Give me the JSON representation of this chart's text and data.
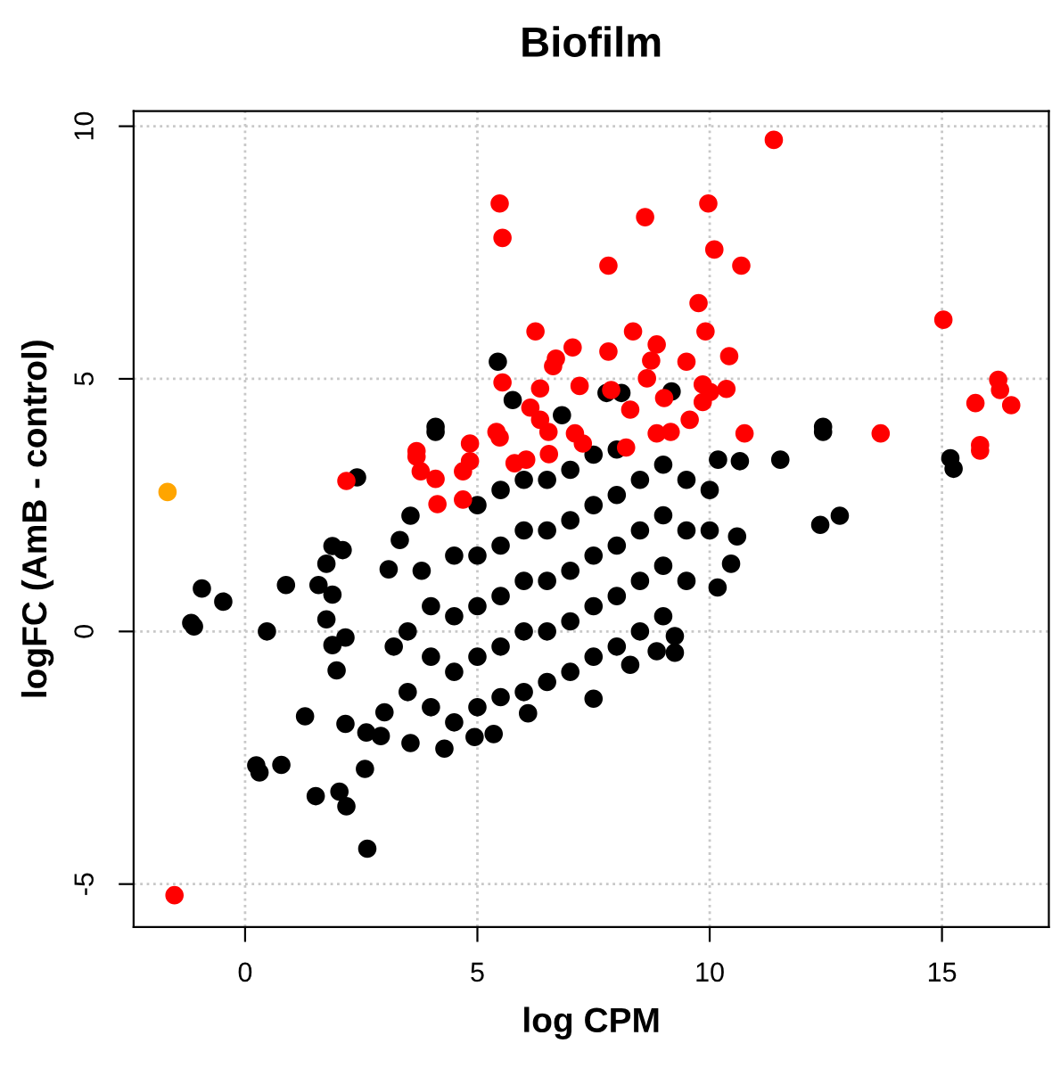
{
  "chart_data": {
    "type": "scatter",
    "title": "Biofilm",
    "xlabel": "log CPM",
    "ylabel": "logFC (AmB - control)",
    "xlim": [
      -2.4,
      17.3
    ],
    "ylim": [
      -5.85,
      10.3
    ],
    "xticks": [
      0,
      5,
      10,
      15
    ],
    "yticks": [
      -5,
      0,
      5,
      10
    ],
    "grid": true,
    "marker": "circle",
    "series": [
      {
        "color": "#000000",
        "x": [
          -0.93,
          -0.47,
          -1.16,
          -1.1,
          0.47,
          0.88,
          1.58,
          1.88,
          1.75,
          1.88,
          2.1,
          1.75,
          1.88,
          2.16,
          1.97,
          1.29,
          2.16,
          2.61,
          2.92,
          0.24,
          0.31,
          0.78,
          2.58,
          1.52,
          2.03,
          2.18,
          2.63,
          3.56,
          4.29,
          4.94,
          5.35,
          6.09,
          7.5,
          8.29,
          8.86,
          9.25,
          9.25,
          10.17,
          10.46,
          10.59,
          11.52,
          12.44,
          12.38,
          12.8,
          15.18,
          15.25,
          10.65,
          10.18,
          3.56,
          3.33,
          3.09,
          2.41,
          4.1,
          5.44,
          5.76,
          4.1,
          6.82,
          12.44,
          9.18,
          7.78,
          8.1,
          3.5,
          3.5,
          4,
          4,
          4,
          4.5,
          4.5,
          4.5,
          4.5,
          5,
          5,
          5,
          5,
          5,
          5.5,
          5.5,
          5.5,
          5.5,
          5.5,
          6,
          6,
          6,
          6,
          6,
          6.5,
          6.5,
          6.5,
          6.5,
          6.5,
          7,
          7,
          7,
          7,
          7,
          7.5,
          7.5,
          7.5,
          7.5,
          7.5,
          8,
          8,
          8,
          8,
          8,
          8.5,
          8.5,
          8.5,
          8.5,
          9,
          9,
          9,
          9,
          9.5,
          9.5,
          9.5,
          10,
          10,
          3,
          3.2,
          3.8
        ],
        "values": [
          0.85,
          0.59,
          0.17,
          0.1,
          0.0,
          0.92,
          0.92,
          0.73,
          1.34,
          1.69,
          1.61,
          0.24,
          -0.27,
          -0.12,
          -0.77,
          -1.68,
          -1.83,
          -2.0,
          -2.07,
          -2.65,
          -2.79,
          -2.64,
          -2.72,
          -3.26,
          -3.17,
          -3.46,
          -4.3,
          -2.21,
          -2.32,
          -2.09,
          -2.03,
          -1.62,
          -1.33,
          -0.66,
          -0.39,
          -0.42,
          -0.09,
          0.87,
          1.34,
          1.88,
          3.4,
          3.95,
          2.11,
          2.29,
          3.43,
          3.22,
          3.37,
          3.4,
          2.29,
          1.81,
          1.23,
          3.05,
          3.95,
          5.34,
          4.58,
          4.05,
          4.28,
          4.05,
          4.75,
          4.72,
          4.72,
          -1.2,
          0,
          -1.5,
          -0.5,
          0.5,
          -1.8,
          -0.8,
          0.3,
          1.5,
          -1.5,
          -0.5,
          0.5,
          1.5,
          2.5,
          -1.3,
          -0.3,
          0.7,
          1.7,
          2.8,
          -1.2,
          0,
          1,
          2,
          3,
          -1,
          0,
          1,
          2,
          3,
          -0.8,
          0.2,
          1.2,
          2.2,
          3.2,
          -0.5,
          0.5,
          1.5,
          2.5,
          3.5,
          -0.3,
          0.7,
          1.7,
          2.7,
          3.6,
          0,
          1,
          2,
          3,
          0.3,
          1.3,
          2.3,
          3.3,
          1,
          2,
          3,
          2,
          2.8,
          -1.6,
          -0.3,
          1.2
        ]
      },
      {
        "color": "#ff0000",
        "x": [
          11.38,
          5.48,
          5.54,
          9.97,
          8.61,
          10.1,
          7.82,
          10.68,
          9.76,
          15.03,
          9.91,
          6.25,
          8.35,
          7.05,
          7.82,
          8.86,
          10.42,
          6.69,
          8.74,
          9.5,
          6.63,
          8.65,
          5.54,
          9.85,
          10.36,
          6.35,
          7.2,
          7.88,
          9.02,
          10.01,
          9.85,
          16.21,
          16.25,
          15.72,
          16.49,
          8.29,
          6.14,
          9.57,
          6.35,
          10.75,
          13.68,
          15.82,
          5.41,
          6.53,
          7.1,
          8.86,
          9.16,
          7.27,
          8.2,
          4.84,
          3.69,
          3.69,
          3.78,
          4.1,
          4.69,
          4.84,
          2.18,
          4.14,
          4.69,
          5.8,
          6.05,
          6.54,
          5.48,
          15.82,
          -1.52
        ],
        "values": [
          9.73,
          8.47,
          7.79,
          8.47,
          8.2,
          7.56,
          7.24,
          7.24,
          6.5,
          6.17,
          5.94,
          5.94,
          5.94,
          5.62,
          5.54,
          5.68,
          5.45,
          5.4,
          5.36,
          5.34,
          5.25,
          5.01,
          4.93,
          4.89,
          4.8,
          4.81,
          4.86,
          4.78,
          4.62,
          4.74,
          4.54,
          4.98,
          4.78,
          4.52,
          4.48,
          4.39,
          4.43,
          4.19,
          4.19,
          3.92,
          3.92,
          3.69,
          3.95,
          3.95,
          3.92,
          3.92,
          3.95,
          3.72,
          3.64,
          3.72,
          3.57,
          3.46,
          3.17,
          3.02,
          3.17,
          3.37,
          2.98,
          2.52,
          2.61,
          3.33,
          3.4,
          3.51,
          3.84,
          3.58,
          -5.22
        ]
      },
      {
        "color": "#ffa500",
        "x": [
          -1.67
        ],
        "values": [
          2.76
        ]
      }
    ]
  }
}
